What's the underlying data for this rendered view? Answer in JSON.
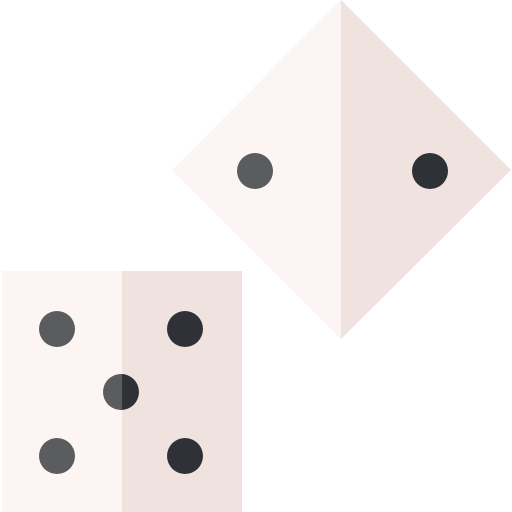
{
  "icon": {
    "name": "dice-icon",
    "dice": [
      {
        "name": "rotated-die",
        "face_value": 2,
        "rotation_deg": 45
      },
      {
        "name": "upright-die",
        "face_value": 5,
        "rotation_deg": 0
      }
    ]
  },
  "colors": {
    "face_light": "#FDF4F4",
    "face_shade": "#EFE2DF",
    "pip_light": "#5A5C60",
    "pip_dark": "#2E3237",
    "background": "#FFFFFF"
  }
}
